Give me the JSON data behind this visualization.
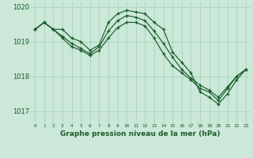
{
  "title": "Graphe pression niveau de la mer (hPa)",
  "bg_color": "#cbe8d8",
  "grid_color": "#a8d4bf",
  "line_color": "#1a5c28",
  "xlim": [
    -0.5,
    23.5
  ],
  "ylim": [
    1016.65,
    1020.15
  ],
  "yticks": [
    1017,
    1018,
    1019,
    1020
  ],
  "ytick_labels": [
    "1017",
    "1018",
    "1019",
    "1020"
  ],
  "xticks": [
    0,
    1,
    2,
    3,
    4,
    5,
    6,
    7,
    8,
    9,
    10,
    11,
    12,
    13,
    14,
    15,
    16,
    17,
    18,
    19,
    20,
    21,
    22,
    23
  ],
  "line1_x": [
    0,
    1,
    2,
    3,
    4,
    5,
    6,
    7,
    8,
    9,
    10,
    11,
    12,
    13,
    14,
    15,
    16,
    17,
    18,
    19,
    20,
    21,
    22,
    23
  ],
  "line1_y": [
    1019.35,
    1019.55,
    1019.35,
    1019.35,
    1019.1,
    1019.0,
    1018.75,
    1018.9,
    1019.55,
    1019.8,
    1019.9,
    1019.85,
    1019.8,
    1019.55,
    1019.35,
    1018.7,
    1018.4,
    1018.1,
    1017.55,
    1017.4,
    1017.2,
    1017.5,
    1017.9,
    1018.2
  ],
  "line2_x": [
    0,
    1,
    2,
    3,
    4,
    5,
    6,
    7,
    8,
    9,
    10,
    11,
    12,
    13,
    14,
    15,
    16,
    17,
    18,
    19,
    20,
    21,
    22,
    23
  ],
  "line2_y": [
    1019.35,
    1019.55,
    1019.35,
    1019.15,
    1018.95,
    1018.8,
    1018.65,
    1018.85,
    1019.3,
    1019.6,
    1019.75,
    1019.7,
    1019.6,
    1019.3,
    1018.95,
    1018.55,
    1018.2,
    1017.95,
    1017.75,
    1017.6,
    1017.4,
    1017.7,
    1018.0,
    1018.2
  ],
  "line3_x": [
    0,
    1,
    2,
    3,
    4,
    5,
    6,
    7,
    8,
    9,
    10,
    11,
    12,
    13,
    14,
    15,
    16,
    17,
    18,
    19,
    20,
    21,
    22,
    23
  ],
  "line3_y": [
    1019.35,
    1019.55,
    1019.35,
    1019.1,
    1018.85,
    1018.75,
    1018.6,
    1018.75,
    1019.1,
    1019.4,
    1019.55,
    1019.55,
    1019.45,
    1019.1,
    1018.65,
    1018.3,
    1018.1,
    1017.9,
    1017.65,
    1017.55,
    1017.3,
    1017.65,
    1018.0,
    1018.2
  ]
}
